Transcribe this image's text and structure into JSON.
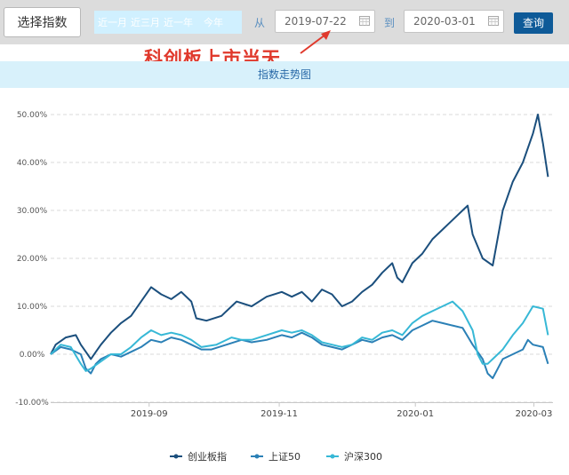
{
  "toolbar": {
    "select_button": "选择指数",
    "quick_ranges": [
      "近一月",
      "近三月",
      "近一年",
      "今年"
    ],
    "from_label": "从",
    "from_date": "2019-07-22",
    "to_label": "到",
    "to_date": "2020-03-01",
    "query_button": "查询"
  },
  "annotation": {
    "text": "科创板上市当天",
    "color": "#e0392c"
  },
  "chart_header": "指数走势图",
  "chart_data": {
    "type": "line",
    "title": "指数走势图",
    "x_domain": [
      0,
      1
    ],
    "ylim": [
      -10,
      50
    ],
    "y_ticks": [
      50,
      40,
      30,
      20,
      10,
      0,
      -10
    ],
    "y_tick_labels": [
      "50.00%",
      "40.00%",
      "30.00%",
      "20.00%",
      "10.00%",
      "0.00%",
      "-10.00%"
    ],
    "x_ticks": [
      {
        "t": 0.196,
        "label": "2019-09"
      },
      {
        "t": 0.455,
        "label": "2019-11"
      },
      {
        "t": 0.726,
        "label": "2020-01"
      },
      {
        "t": 0.962,
        "label": "2020-03"
      }
    ],
    "legend_position": "bottom",
    "series": [
      {
        "name": "创业板指",
        "color": "#1b4f7d",
        "points": [
          [
            0,
            0
          ],
          [
            0.01,
            2
          ],
          [
            0.03,
            3.5
          ],
          [
            0.05,
            4
          ],
          [
            0.06,
            2
          ],
          [
            0.07,
            0.5
          ],
          [
            0.08,
            -1
          ],
          [
            0.09,
            0.5
          ],
          [
            0.1,
            2
          ],
          [
            0.12,
            4.5
          ],
          [
            0.14,
            6.5
          ],
          [
            0.16,
            8
          ],
          [
            0.18,
            11
          ],
          [
            0.2,
            14
          ],
          [
            0.22,
            12.5
          ],
          [
            0.24,
            11.5
          ],
          [
            0.26,
            13
          ],
          [
            0.28,
            11
          ],
          [
            0.29,
            7.5
          ],
          [
            0.31,
            7
          ],
          [
            0.34,
            8
          ],
          [
            0.37,
            11
          ],
          [
            0.4,
            10
          ],
          [
            0.43,
            12
          ],
          [
            0.46,
            13
          ],
          [
            0.48,
            12
          ],
          [
            0.5,
            13
          ],
          [
            0.52,
            11
          ],
          [
            0.54,
            13.5
          ],
          [
            0.56,
            12.5
          ],
          [
            0.58,
            10
          ],
          [
            0.6,
            11
          ],
          [
            0.62,
            13
          ],
          [
            0.64,
            14.5
          ],
          [
            0.66,
            17
          ],
          [
            0.68,
            19
          ],
          [
            0.69,
            16
          ],
          [
            0.7,
            15
          ],
          [
            0.72,
            19
          ],
          [
            0.74,
            21
          ],
          [
            0.76,
            24
          ],
          [
            0.78,
            26
          ],
          [
            0.8,
            28
          ],
          [
            0.82,
            30
          ],
          [
            0.83,
            31
          ],
          [
            0.84,
            25
          ],
          [
            0.86,
            20
          ],
          [
            0.88,
            18.5
          ],
          [
            0.9,
            30
          ],
          [
            0.92,
            36
          ],
          [
            0.94,
            40
          ],
          [
            0.96,
            46
          ],
          [
            0.97,
            50
          ],
          [
            0.98,
            44
          ],
          [
            0.99,
            37
          ]
        ]
      },
      {
        "name": "上证50",
        "color": "#2b80b6",
        "points": [
          [
            0,
            0
          ],
          [
            0.02,
            1.5
          ],
          [
            0.04,
            1
          ],
          [
            0.06,
            0
          ],
          [
            0.07,
            -3
          ],
          [
            0.08,
            -4
          ],
          [
            0.09,
            -2
          ],
          [
            0.1,
            -1
          ],
          [
            0.12,
            0
          ],
          [
            0.14,
            -0.5
          ],
          [
            0.16,
            0.5
          ],
          [
            0.18,
            1.5
          ],
          [
            0.2,
            3
          ],
          [
            0.22,
            2.5
          ],
          [
            0.24,
            3.5
          ],
          [
            0.26,
            3
          ],
          [
            0.28,
            2
          ],
          [
            0.3,
            1
          ],
          [
            0.32,
            1
          ],
          [
            0.35,
            2
          ],
          [
            0.38,
            3
          ],
          [
            0.4,
            2.5
          ],
          [
            0.43,
            3
          ],
          [
            0.46,
            4
          ],
          [
            0.48,
            3.5
          ],
          [
            0.5,
            4.5
          ],
          [
            0.52,
            3.5
          ],
          [
            0.54,
            2
          ],
          [
            0.56,
            1.5
          ],
          [
            0.58,
            1
          ],
          [
            0.6,
            2
          ],
          [
            0.62,
            3
          ],
          [
            0.64,
            2.5
          ],
          [
            0.66,
            3.5
          ],
          [
            0.68,
            4
          ],
          [
            0.7,
            3
          ],
          [
            0.72,
            5
          ],
          [
            0.74,
            6
          ],
          [
            0.76,
            7
          ],
          [
            0.78,
            6.5
          ],
          [
            0.8,
            6
          ],
          [
            0.82,
            5.5
          ],
          [
            0.84,
            2
          ],
          [
            0.86,
            -1
          ],
          [
            0.87,
            -4
          ],
          [
            0.88,
            -5
          ],
          [
            0.89,
            -3
          ],
          [
            0.9,
            -1
          ],
          [
            0.92,
            0
          ],
          [
            0.94,
            1
          ],
          [
            0.95,
            3
          ],
          [
            0.96,
            2
          ],
          [
            0.98,
            1.5
          ],
          [
            0.99,
            -2
          ]
        ]
      },
      {
        "name": "沪深300",
        "color": "#37b8d6",
        "points": [
          [
            0,
            0
          ],
          [
            0.02,
            2
          ],
          [
            0.04,
            1.5
          ],
          [
            0.06,
            -2
          ],
          [
            0.07,
            -3.5
          ],
          [
            0.08,
            -3
          ],
          [
            0.1,
            -1.5
          ],
          [
            0.12,
            0
          ],
          [
            0.14,
            0
          ],
          [
            0.16,
            1.5
          ],
          [
            0.18,
            3.5
          ],
          [
            0.2,
            5
          ],
          [
            0.22,
            4
          ],
          [
            0.24,
            4.5
          ],
          [
            0.26,
            4
          ],
          [
            0.28,
            3
          ],
          [
            0.3,
            1.5
          ],
          [
            0.33,
            2
          ],
          [
            0.36,
            3.5
          ],
          [
            0.38,
            3
          ],
          [
            0.4,
            3
          ],
          [
            0.43,
            4
          ],
          [
            0.46,
            5
          ],
          [
            0.48,
            4.5
          ],
          [
            0.5,
            5
          ],
          [
            0.52,
            4
          ],
          [
            0.54,
            2.5
          ],
          [
            0.56,
            2
          ],
          [
            0.58,
            1.5
          ],
          [
            0.6,
            2
          ],
          [
            0.62,
            3.5
          ],
          [
            0.64,
            3
          ],
          [
            0.66,
            4.5
          ],
          [
            0.68,
            5
          ],
          [
            0.7,
            4
          ],
          [
            0.72,
            6.5
          ],
          [
            0.74,
            8
          ],
          [
            0.76,
            9
          ],
          [
            0.78,
            10
          ],
          [
            0.8,
            11
          ],
          [
            0.82,
            9
          ],
          [
            0.84,
            5
          ],
          [
            0.85,
            0
          ],
          [
            0.86,
            -2
          ],
          [
            0.87,
            -2
          ],
          [
            0.88,
            -1
          ],
          [
            0.9,
            1
          ],
          [
            0.92,
            4
          ],
          [
            0.94,
            6.5
          ],
          [
            0.96,
            10
          ],
          [
            0.98,
            9.5
          ],
          [
            0.99,
            4
          ]
        ]
      }
    ]
  }
}
